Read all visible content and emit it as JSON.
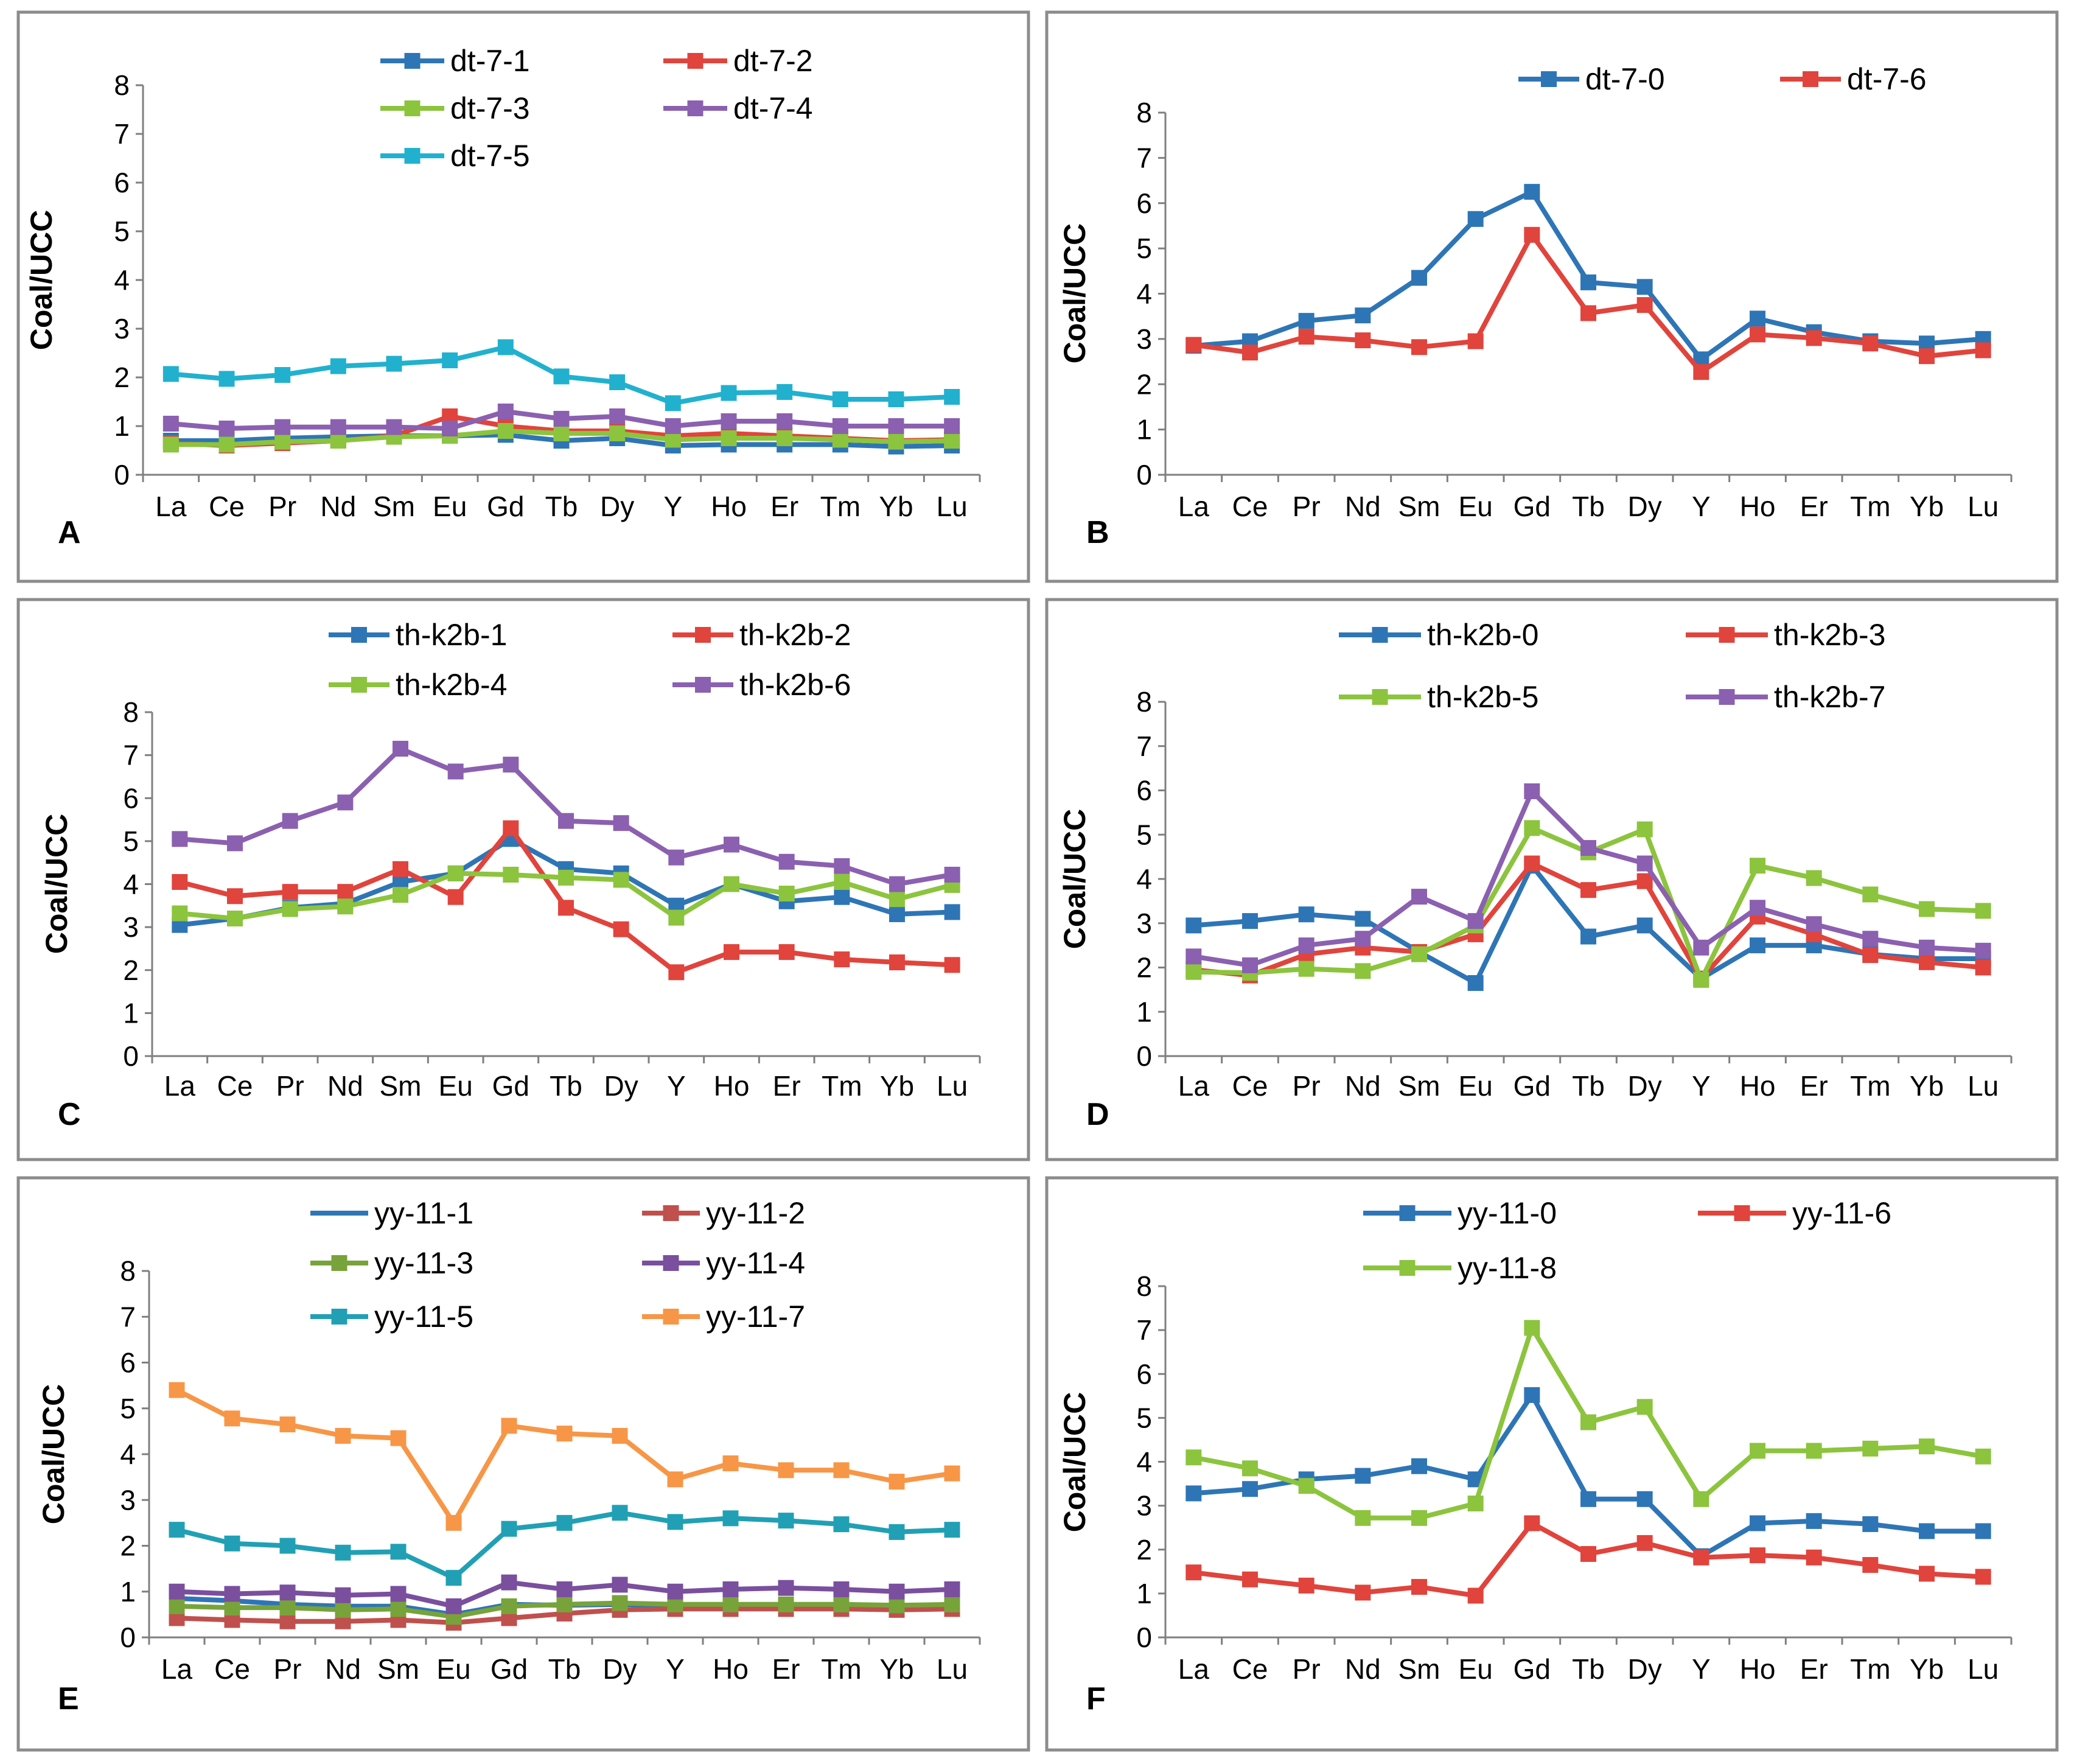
{
  "figure": {
    "panels": [
      "A",
      "B",
      "C",
      "D",
      "E",
      "F"
    ]
  },
  "chart_data": [
    {
      "panel": "A",
      "type": "line",
      "ylabel": "Coal/UCC",
      "xlabel": "",
      "ylim": [
        0,
        8
      ],
      "yticks": [
        "0",
        "1",
        "2",
        "3",
        "4",
        "5",
        "6",
        "7",
        "8"
      ],
      "categories": [
        "La",
        "Ce",
        "Pr",
        "Nd",
        "Sm",
        "Eu",
        "Gd",
        "Tb",
        "Dy",
        "Y",
        "Ho",
        "Er",
        "Tm",
        "Yb",
        "Lu"
      ],
      "series": [
        {
          "name": "dt-7-1",
          "color": "#2e75b6",
          "values": [
            0.7,
            0.7,
            0.75,
            0.78,
            0.8,
            0.8,
            0.82,
            0.7,
            0.75,
            0.6,
            0.62,
            0.62,
            0.62,
            0.58,
            0.6
          ]
        },
        {
          "name": "dt-7-2",
          "color": "#e0443c",
          "values": [
            0.65,
            0.6,
            0.65,
            0.7,
            0.8,
            1.2,
            1.0,
            0.9,
            0.9,
            0.8,
            0.85,
            0.8,
            0.75,
            0.7,
            0.72
          ]
        },
        {
          "name": "dt-7-3",
          "color": "#8cc43e",
          "values": [
            0.62,
            0.62,
            0.68,
            0.7,
            0.78,
            0.8,
            0.9,
            0.85,
            0.85,
            0.72,
            0.75,
            0.75,
            0.72,
            0.68,
            0.7
          ]
        },
        {
          "name": "dt-7-4",
          "color": "#8b60b0",
          "values": [
            1.05,
            0.95,
            0.98,
            0.98,
            0.98,
            0.95,
            1.3,
            1.15,
            1.2,
            1.0,
            1.1,
            1.1,
            1.0,
            1.0,
            1.0
          ]
        },
        {
          "name": "dt-7-5",
          "color": "#21b1cf",
          "values": [
            2.07,
            1.97,
            2.05,
            2.23,
            2.28,
            2.35,
            2.62,
            2.02,
            1.9,
            1.47,
            1.68,
            1.7,
            1.55,
            1.55,
            1.6
          ]
        }
      ]
    },
    {
      "panel": "B",
      "type": "line",
      "ylabel": "Coal/UCC",
      "xlabel": "",
      "ylim": [
        0,
        8
      ],
      "yticks": [
        "0",
        "1",
        "2",
        "3",
        "4",
        "5",
        "6",
        "7",
        "8"
      ],
      "categories": [
        "La",
        "Ce",
        "Pr",
        "Nd",
        "Sm",
        "Eu",
        "Gd",
        "Tb",
        "Dy",
        "Y",
        "Ho",
        "Er",
        "Tm",
        "Yb",
        "Lu"
      ],
      "series": [
        {
          "name": "dt-7-0",
          "color": "#2e75b6",
          "values": [
            2.85,
            2.95,
            3.4,
            3.52,
            4.35,
            5.65,
            6.25,
            4.25,
            4.15,
            2.55,
            3.45,
            3.15,
            2.95,
            2.9,
            3.0
          ]
        },
        {
          "name": "dt-7-6",
          "color": "#e0443c",
          "values": [
            2.87,
            2.7,
            3.05,
            2.97,
            2.82,
            2.95,
            5.3,
            3.57,
            3.75,
            2.27,
            3.1,
            3.02,
            2.9,
            2.62,
            2.75
          ]
        }
      ]
    },
    {
      "panel": "C",
      "type": "line",
      "ylabel": "Coal/UCC",
      "xlabel": "",
      "ylim": [
        0,
        8
      ],
      "yticks": [
        "0",
        "1",
        "2",
        "3",
        "4",
        "5",
        "6",
        "7",
        "8"
      ],
      "categories": [
        "La",
        "Ce",
        "Pr",
        "Nd",
        "Sm",
        "Eu",
        "Gd",
        "Tb",
        "Dy",
        "Y",
        "Ho",
        "Er",
        "Tm",
        "Yb",
        "Lu"
      ],
      "series": [
        {
          "name": "th-k2b-1",
          "color": "#2e75b6",
          "values": [
            3.05,
            3.2,
            3.45,
            3.55,
            4.05,
            4.25,
            5.05,
            4.35,
            4.25,
            3.5,
            4.0,
            3.6,
            3.7,
            3.3,
            3.35
          ]
        },
        {
          "name": "th-k2b-2",
          "color": "#e0443c",
          "values": [
            4.05,
            3.72,
            3.82,
            3.82,
            4.35,
            3.7,
            5.3,
            3.45,
            2.95,
            1.95,
            2.42,
            2.42,
            2.25,
            2.18,
            2.12
          ]
        },
        {
          "name": "th-k2b-4",
          "color": "#8cc43e",
          "values": [
            3.32,
            3.2,
            3.42,
            3.48,
            3.75,
            4.25,
            4.22,
            4.15,
            4.1,
            3.22,
            4.0,
            3.78,
            4.05,
            3.65,
            3.98
          ]
        },
        {
          "name": "th-k2b-6",
          "color": "#8b60b0",
          "values": [
            5.05,
            4.95,
            5.47,
            5.9,
            7.15,
            6.62,
            6.78,
            5.47,
            5.42,
            4.62,
            4.92,
            4.52,
            4.42,
            4.0,
            4.22
          ]
        }
      ]
    },
    {
      "panel": "D",
      "type": "line",
      "ylabel": "Coal/UCC",
      "xlabel": "",
      "ylim": [
        0,
        8
      ],
      "yticks": [
        "0",
        "1",
        "2",
        "3",
        "4",
        "5",
        "6",
        "7",
        "8"
      ],
      "categories": [
        "La",
        "Ce",
        "Pr",
        "Nd",
        "Sm",
        "Eu",
        "Gd",
        "Tb",
        "Dy",
        "Y",
        "Ho",
        "Er",
        "Tm",
        "Yb",
        "Lu"
      ],
      "series": [
        {
          "name": "th-k2b-0",
          "color": "#2e75b6",
          "values": [
            2.95,
            3.05,
            3.2,
            3.1,
            2.35,
            1.65,
            4.3,
            2.7,
            2.95,
            1.75,
            2.5,
            2.5,
            2.3,
            2.2,
            2.2
          ]
        },
        {
          "name": "th-k2b-3",
          "color": "#e0443c",
          "values": [
            1.95,
            1.82,
            2.3,
            2.45,
            2.35,
            2.75,
            4.35,
            3.75,
            3.95,
            1.75,
            3.15,
            2.75,
            2.28,
            2.12,
            2.0
          ]
        },
        {
          "name": "th-k2b-5",
          "color": "#8cc43e",
          "values": [
            1.9,
            1.88,
            1.97,
            1.92,
            2.3,
            2.95,
            5.15,
            4.6,
            5.12,
            1.72,
            4.3,
            4.02,
            3.65,
            3.32,
            3.28
          ]
        },
        {
          "name": "th-k2b-7",
          "color": "#8b60b0",
          "values": [
            2.25,
            2.05,
            2.5,
            2.65,
            3.6,
            3.05,
            5.98,
            4.7,
            4.35,
            2.45,
            3.35,
            2.98,
            2.65,
            2.45,
            2.38
          ]
        }
      ]
    },
    {
      "panel": "E",
      "type": "line",
      "ylabel": "Coal/UCC",
      "xlabel": "",
      "ylim": [
        0,
        8
      ],
      "yticks": [
        "0",
        "1",
        "2",
        "3",
        "4",
        "5",
        "6",
        "7",
        "8"
      ],
      "categories": [
        "La",
        "Ce",
        "Pr",
        "Nd",
        "Sm",
        "Eu",
        "Gd",
        "Tb",
        "Dy",
        "Y",
        "Ho",
        "Er",
        "Tm",
        "Yb",
        "Lu"
      ],
      "series": [
        {
          "name": "yy-11-1",
          "color": "#2e75b6",
          "markers": false,
          "values": [
            0.85,
            0.8,
            0.72,
            0.68,
            0.68,
            0.5,
            0.72,
            0.7,
            0.72,
            0.68,
            0.7,
            0.7,
            0.7,
            0.68,
            0.7
          ]
        },
        {
          "name": "yy-11-2",
          "color": "#c0504d",
          "values": [
            0.42,
            0.38,
            0.35,
            0.35,
            0.38,
            0.32,
            0.42,
            0.52,
            0.6,
            0.62,
            0.62,
            0.62,
            0.62,
            0.6,
            0.62
          ]
        },
        {
          "name": "yy-11-3",
          "color": "#77a33a",
          "values": [
            0.68,
            0.65,
            0.65,
            0.6,
            0.62,
            0.45,
            0.68,
            0.72,
            0.75,
            0.72,
            0.72,
            0.72,
            0.72,
            0.7,
            0.72
          ]
        },
        {
          "name": "yy-11-4",
          "color": "#7a4f9e",
          "values": [
            1.0,
            0.95,
            0.98,
            0.92,
            0.95,
            0.68,
            1.2,
            1.05,
            1.15,
            1.0,
            1.05,
            1.08,
            1.05,
            1.0,
            1.05
          ]
        },
        {
          "name": "yy-11-5",
          "color": "#21a0b5",
          "values": [
            2.35,
            2.05,
            2.0,
            1.85,
            1.87,
            1.3,
            2.37,
            2.5,
            2.72,
            2.52,
            2.6,
            2.55,
            2.47,
            2.3,
            2.35
          ]
        },
        {
          "name": "yy-11-7",
          "color": "#f79646",
          "values": [
            5.4,
            4.78,
            4.65,
            4.4,
            4.35,
            2.5,
            4.62,
            4.45,
            4.4,
            3.45,
            3.8,
            3.65,
            3.65,
            3.4,
            3.58
          ]
        }
      ]
    },
    {
      "panel": "F",
      "type": "line",
      "ylabel": "Coal/UCC",
      "xlabel": "",
      "ylim": [
        0,
        8
      ],
      "yticks": [
        "0",
        "1",
        "2",
        "3",
        "4",
        "5",
        "6",
        "7",
        "8"
      ],
      "categories": [
        "La",
        "Ce",
        "Pr",
        "Nd",
        "Sm",
        "Eu",
        "Gd",
        "Tb",
        "Dy",
        "Y",
        "Ho",
        "Er",
        "Tm",
        "Yb",
        "Lu"
      ],
      "series": [
        {
          "name": "yy-11-0",
          "color": "#2e75b6",
          "values": [
            3.28,
            3.38,
            3.6,
            3.68,
            3.9,
            3.6,
            5.52,
            3.15,
            3.15,
            1.85,
            2.6,
            2.65,
            2.58,
            2.42,
            2.42
          ]
        },
        {
          "name": "yy-11-6",
          "color": "#e0443c",
          "values": [
            1.48,
            1.32,
            1.18,
            1.02,
            1.15,
            0.95,
            2.6,
            1.9,
            2.15,
            1.82,
            1.87,
            1.82,
            1.65,
            1.45,
            1.38
          ]
        },
        {
          "name": "yy-11-8",
          "color": "#8cc43e",
          "values": [
            4.1,
            3.85,
            3.45,
            2.72,
            2.72,
            3.05,
            7.05,
            4.9,
            5.25,
            3.15,
            4.25,
            4.25,
            4.3,
            4.35,
            4.12
          ]
        }
      ]
    }
  ]
}
